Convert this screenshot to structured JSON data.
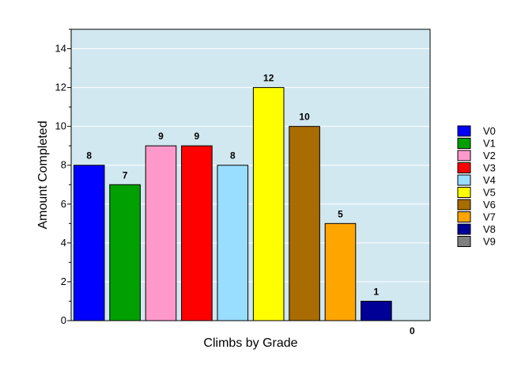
{
  "chart_data": {
    "type": "bar",
    "title": "",
    "xlabel": "Climbs by Grade",
    "ylabel": "Amount Completed",
    "ylim": [
      0,
      15
    ],
    "yticks": [
      0,
      2,
      4,
      6,
      8,
      10,
      12,
      14
    ],
    "grid": "horizontal",
    "legend_position": "right",
    "plot_background": "#d1e8f1",
    "categories": [
      "V0",
      "V1",
      "V2",
      "V3",
      "V4",
      "V5",
      "V6",
      "V7",
      "V8",
      "V9"
    ],
    "values": [
      8,
      7,
      9,
      9,
      8,
      12,
      10,
      5,
      1,
      0
    ],
    "colors": [
      "#0000ff",
      "#00a000",
      "#ff99cc",
      "#ff0000",
      "#99ddff",
      "#ffff00",
      "#a86c00",
      "#ffa500",
      "#000096",
      "#808080"
    ]
  }
}
